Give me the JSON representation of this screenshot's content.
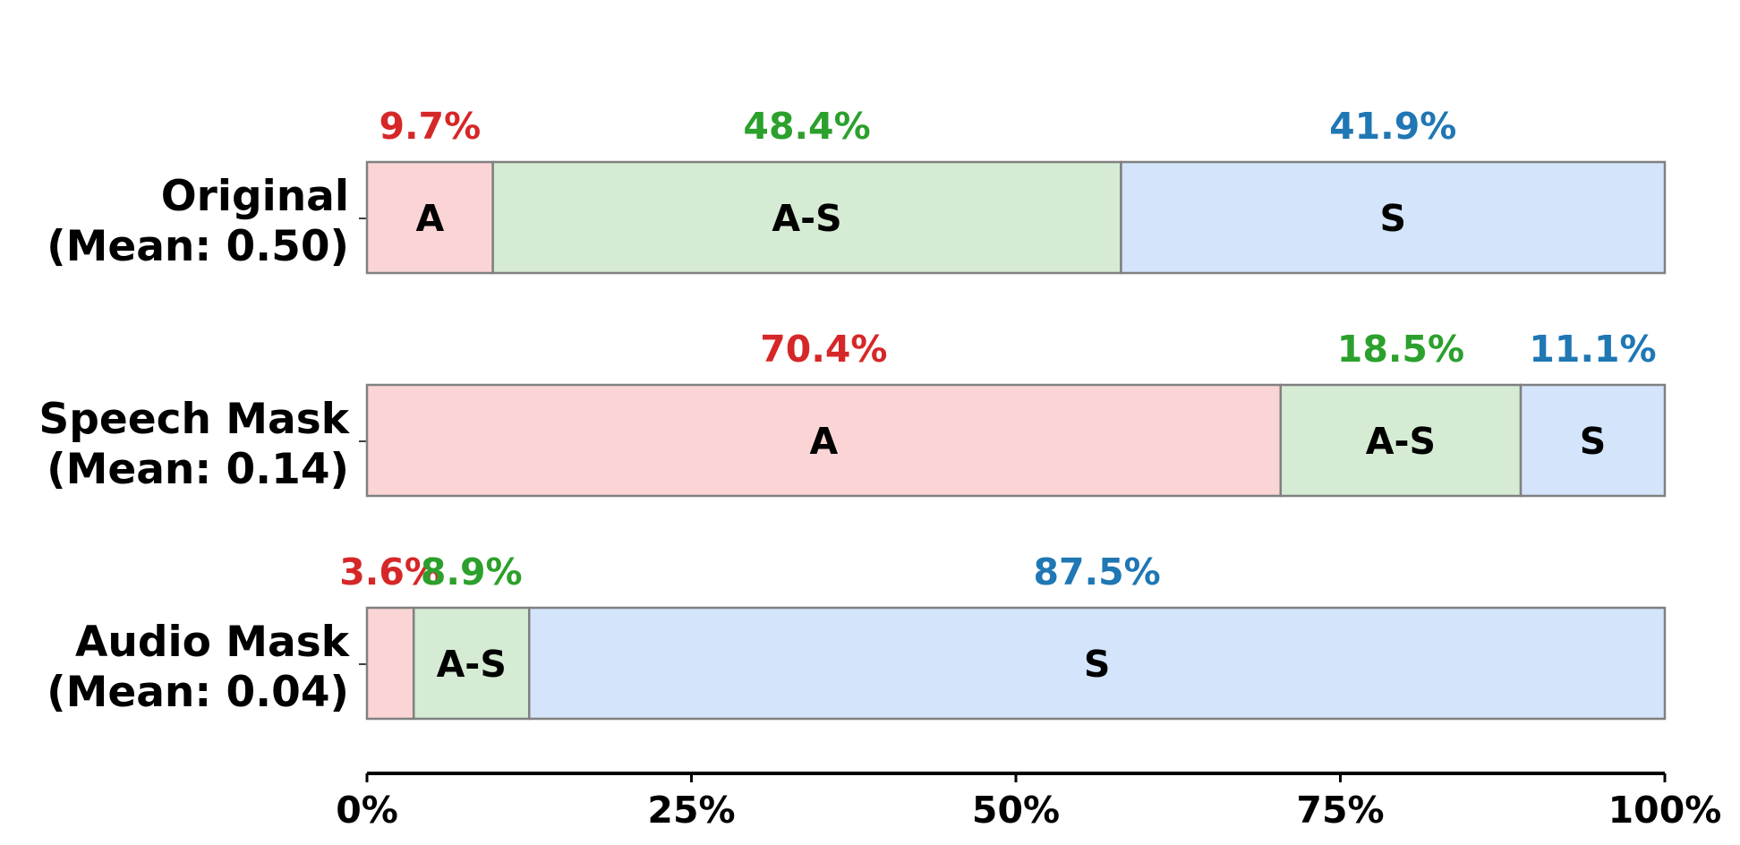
{
  "chart_data": {
    "type": "bar",
    "orientation": "horizontal",
    "stacked": true,
    "title": "",
    "xlabel": "",
    "ylabel": "",
    "xlim": [
      0,
      100
    ],
    "grid": false,
    "legend": "none",
    "x_ticks": [
      "0%",
      "25%",
      "50%",
      "75%",
      "100%"
    ],
    "x_tick_values": [
      0,
      25,
      50,
      75,
      100
    ],
    "categories": [
      {
        "line1": "Original",
        "line2": "(Mean: 0.50)"
      },
      {
        "line1": "Speech Mask",
        "line2": "(Mean: 0.14)"
      },
      {
        "line1": "Audio Mask",
        "line2": "(Mean: 0.04)"
      }
    ],
    "series": [
      {
        "name": "A",
        "label": "A",
        "fill": "#fbd5d5",
        "text_color": "#d62728",
        "values": [
          9.7,
          70.4,
          3.6
        ],
        "pct_labels": [
          "9.7%",
          "70.4%",
          "3.6%"
        ],
        "seg_labels": [
          "A",
          "A",
          ""
        ]
      },
      {
        "name": "A-S",
        "label": "A-S",
        "fill": "#d5ebd3",
        "text_color": "#2ca02c",
        "values": [
          48.4,
          18.5,
          8.9
        ],
        "pct_labels": [
          "48.4%",
          "18.5%",
          "8.9%"
        ],
        "seg_labels": [
          "A-S",
          "A-S",
          "A-S"
        ]
      },
      {
        "name": "S",
        "label": "S",
        "fill": "#d3e4fb",
        "text_color": "#1f77b4",
        "values": [
          41.9,
          11.1,
          87.5
        ],
        "pct_labels": [
          "41.9%",
          "11.1%",
          "87.5%"
        ],
        "seg_labels": [
          "S",
          "S",
          "S"
        ]
      }
    ],
    "colors": {
      "edge": "#808080",
      "axis": "#000000"
    }
  }
}
